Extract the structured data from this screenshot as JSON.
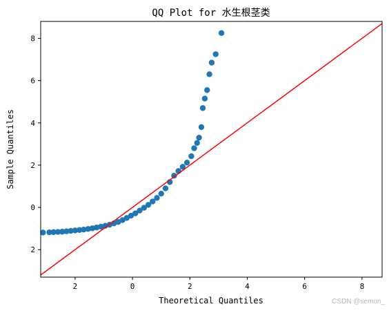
{
  "chart_data": {
    "type": "scatter",
    "title": "QQ Plot for 水生根茎类",
    "xlabel": "Theoretical Quantiles",
    "ylabel": "Sample Quantiles",
    "xlim": [
      -3.2,
      8.7
    ],
    "ylim": [
      -3.3,
      8.8
    ],
    "xticks": [
      {
        "value": -2,
        "label": "2"
      },
      {
        "value": 0,
        "label": "0"
      },
      {
        "value": 2,
        "label": "2"
      },
      {
        "value": 4,
        "label": "4"
      },
      {
        "value": 6,
        "label": "6"
      },
      {
        "value": 8,
        "label": "8"
      }
    ],
    "yticks": [
      {
        "value": -2,
        "label": "2"
      },
      {
        "value": 0,
        "label": "0"
      },
      {
        "value": 2,
        "label": "2"
      },
      {
        "value": 4,
        "label": "4"
      },
      {
        "value": 6,
        "label": "6"
      },
      {
        "value": 8,
        "label": "8"
      }
    ],
    "grid": false,
    "colors": {
      "points": "#1f77b4",
      "reference_line": "#ff0000"
    },
    "reference_line": {
      "type": "45-degree",
      "points": [
        [
          -3.2,
          -3.2
        ],
        [
          8.7,
          8.7
        ]
      ]
    },
    "points": [
      [
        -3.12,
        -1.19
      ],
      [
        -2.9,
        -1.18
      ],
      [
        -2.75,
        -1.17
      ],
      [
        -2.6,
        -1.16
      ],
      [
        -2.45,
        -1.15
      ],
      [
        -2.3,
        -1.13
      ],
      [
        -2.15,
        -1.11
      ],
      [
        -2.0,
        -1.09
      ],
      [
        -1.85,
        -1.07
      ],
      [
        -1.7,
        -1.05
      ],
      [
        -1.55,
        -1.02
      ],
      [
        -1.4,
        -0.99
      ],
      [
        -1.25,
        -0.95
      ],
      [
        -1.1,
        -0.91
      ],
      [
        -0.95,
        -0.87
      ],
      [
        -0.8,
        -0.82
      ],
      [
        -0.65,
        -0.76
      ],
      [
        -0.5,
        -0.69
      ],
      [
        -0.35,
        -0.6
      ],
      [
        -0.2,
        -0.5
      ],
      [
        -0.05,
        -0.39
      ],
      [
        0.1,
        -0.28
      ],
      [
        0.25,
        -0.15
      ],
      [
        0.4,
        -0.02
      ],
      [
        0.55,
        0.12
      ],
      [
        0.7,
        0.28
      ],
      [
        0.85,
        0.45
      ],
      [
        1.0,
        0.65
      ],
      [
        1.15,
        0.9
      ],
      [
        1.3,
        1.2
      ],
      [
        1.45,
        1.5
      ],
      [
        1.6,
        1.72
      ],
      [
        1.75,
        1.92
      ],
      [
        1.9,
        2.12
      ],
      [
        2.05,
        2.42
      ],
      [
        2.15,
        2.8
      ],
      [
        2.25,
        3.05
      ],
      [
        2.32,
        3.3
      ],
      [
        2.4,
        3.8
      ],
      [
        2.45,
        4.7
      ],
      [
        2.52,
        5.15
      ],
      [
        2.6,
        5.55
      ],
      [
        2.68,
        6.3
      ],
      [
        2.76,
        6.85
      ],
      [
        2.9,
        7.25
      ],
      [
        3.1,
        8.25
      ]
    ]
  },
  "watermark": "CSDN @semon_"
}
